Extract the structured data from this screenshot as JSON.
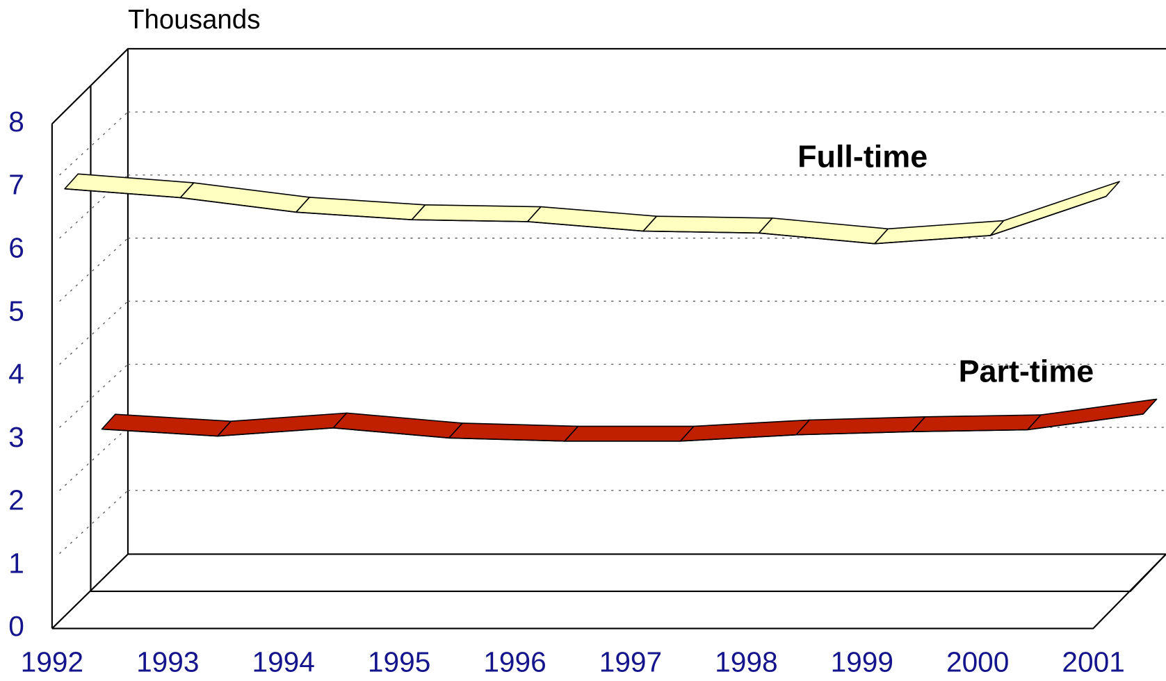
{
  "chart_data": {
    "type": "line3d",
    "y_label": "Thousands",
    "categories": [
      "1992",
      "1993",
      "1994",
      "1995",
      "1996",
      "1997",
      "1998",
      "1999",
      "2000",
      "2001"
    ],
    "series": [
      {
        "name": "Full-time",
        "color": "#ffffc0",
        "values": [
          6.97,
          6.83,
          6.6,
          6.48,
          6.45,
          6.3,
          6.27,
          6.1,
          6.23,
          6.85
        ]
      },
      {
        "name": "Part-time",
        "color": "#c02000",
        "values": [
          3.16,
          3.05,
          3.18,
          3.02,
          2.97,
          2.97,
          3.07,
          3.12,
          3.15,
          3.4
        ]
      }
    ],
    "ylim": [
      0,
      8
    ],
    "yticks": [
      0,
      1,
      2,
      3,
      4,
      5,
      6,
      7,
      8
    ],
    "grid": true
  }
}
